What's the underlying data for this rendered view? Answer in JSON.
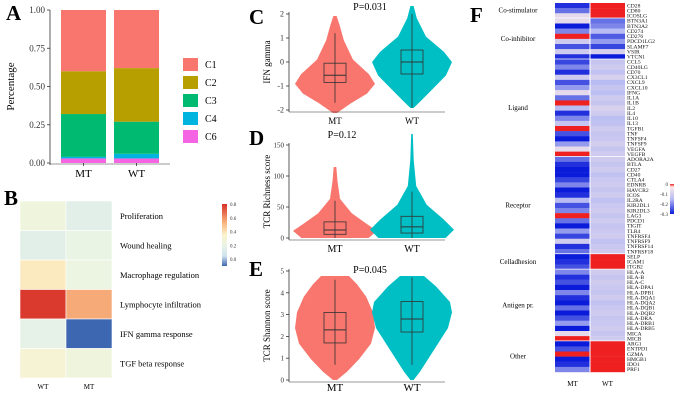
{
  "panels": {
    "A": {
      "label": "A",
      "chart_data": {
        "type": "bar",
        "stacked": true,
        "categories": [
          "MT",
          "WT"
        ],
        "series": [
          {
            "name": "C6",
            "values": [
              0.03,
              0.03
            ]
          },
          {
            "name": "C4",
            "values": [
              0.01,
              0.03
            ]
          },
          {
            "name": "C3",
            "values": [
              0.28,
              0.21
            ]
          },
          {
            "name": "C2",
            "values": [
              0.28,
              0.35
            ]
          },
          {
            "name": "C1",
            "values": [
              0.4,
              0.38
            ]
          }
        ],
        "colors": {
          "C1": "#f8766d",
          "C2": "#b79f00",
          "C3": "#00ba72",
          "C4": "#00b4e0",
          "C6": "#f564e3"
        },
        "legend_order": [
          "C1",
          "C2",
          "C3",
          "C4",
          "C6"
        ],
        "ylabel": "Percentage",
        "ylim": [
          0,
          1
        ],
        "yticks": [
          "0.00",
          "0.25",
          "0.50",
          "0.75",
          "1.00"
        ]
      }
    },
    "B": {
      "label": "B",
      "chart_data": {
        "type": "heatmap",
        "columns": [
          "WT",
          "MT"
        ],
        "rows": [
          "Proliferation",
          "Wound healing",
          "Macrophage regulation",
          "Lymphocyte infiltration",
          "IFN gamma response",
          "TGF beta response"
        ],
        "values": [
          [
            0.25,
            0.15
          ],
          [
            0.15,
            0.2
          ],
          [
            0.38,
            0.22
          ],
          [
            0.78,
            0.55
          ],
          [
            0.18,
            -0.1
          ],
          [
            0.3,
            0.25
          ]
        ],
        "scale": {
          "min": -0.1,
          "max": 0.8,
          "ticks": [
            "0.8",
            "0.6",
            "0.4",
            "0.2",
            "0.0"
          ]
        }
      }
    },
    "C": {
      "label": "C",
      "chart_data": {
        "type": "violin",
        "title": "P=0.031",
        "ylabel": "IFN gamma",
        "categories": [
          "MT",
          "WT"
        ],
        "ylim": [
          -2,
          2
        ],
        "yticks": [
          "2",
          "1",
          "0",
          "-1",
          "-2"
        ],
        "boxes": [
          {
            "q1": -0.85,
            "median": -0.55,
            "q3": -0.05,
            "low": -1.7,
            "high": 1.2
          },
          {
            "q1": -0.5,
            "median": 0.0,
            "q3": 0.5,
            "low": -1.9,
            "high": 2.0
          }
        ],
        "colors": [
          "#f8766d",
          "#00bfc4"
        ]
      }
    },
    "D": {
      "label": "D",
      "chart_data": {
        "type": "violin",
        "title": "P=0.12",
        "ylabel": "TCR Richness score",
        "categories": [
          "MT",
          "WT"
        ],
        "ylim": [
          0,
          150
        ],
        "yticks": [
          "150",
          "100",
          "50",
          "0"
        ],
        "boxes": [
          {
            "q1": 6,
            "median": 13,
            "q3": 26,
            "low": 0,
            "high": 60
          },
          {
            "q1": 8,
            "median": 18,
            "q3": 35,
            "low": 0,
            "high": 75
          }
        ],
        "colors": [
          "#f8766d",
          "#00bfc4"
        ]
      }
    },
    "E": {
      "label": "E",
      "chart_data": {
        "type": "violin",
        "title": "P=0.045",
        "ylabel": "TCR Shannon score",
        "categories": [
          "MT",
          "WT"
        ],
        "ylim": [
          0,
          5
        ],
        "yticks": [
          "5",
          "4",
          "3",
          "2",
          "1",
          "0"
        ],
        "boxes": [
          {
            "q1": 1.7,
            "median": 2.3,
            "q3": 3.1,
            "low": 0.7,
            "high": 4.6
          },
          {
            "q1": 2.2,
            "median": 2.8,
            "q3": 3.6,
            "low": 0.7,
            "high": 4.7
          }
        ],
        "colors": [
          "#f8766d",
          "#00bfc4"
        ]
      }
    },
    "F": {
      "label": "F",
      "chart_data": {
        "type": "heatmap",
        "columns": [
          "MT",
          "WT"
        ],
        "scale": {
          "min": -0.3,
          "max": 0,
          "ticks": [
            "0",
            "-0.1",
            "-0.2",
            "-0.3"
          ]
        },
        "groups": [
          {
            "name": "Co-stimulator",
            "genes": [
              "CD28",
              "CD80",
              "ICOSLG"
            ],
            "mt": [
              -0.28,
              -0.22,
              -0.05
            ],
            "wt": [
              0,
              0,
              0
            ]
          },
          {
            "name": "Co-inhibitor",
            "genes": [
              "BTN3A1",
              "BTN3A2",
              "CD274",
              "CD276",
              "PDCD1LG2",
              "SLAMF7",
              "VSIR",
              "VTCN1"
            ],
            "mt": [
              -0.05,
              -0.3,
              -0.2,
              0,
              -0.1,
              -0.25,
              -0.1,
              -0.28
            ],
            "wt": [
              -0.22,
              -0.2,
              -0.15,
              -0.24,
              -0.18,
              -0.26,
              -0.08,
              -0.3
            ]
          },
          {
            "name": "Ligand",
            "genes": [
              "CCL5",
              "CD40LG",
              "CD70",
              "CX3CL1",
              "CXCL9",
              "CXCL10",
              "IFNG",
              "IL1A",
              "IL1B",
              "IL2",
              "IL4",
              "IL10",
              "IL13",
              "TGFB1",
              "TNF",
              "TNFSF4",
              "TNFSF9",
              "VEGFA",
              "VEGFB"
            ],
            "mt": [
              -0.26,
              -0.2,
              -0.28,
              -0.1,
              -0.25,
              -0.18,
              -0.05,
              -0.22,
              0,
              -0.15,
              -0.28,
              -0.2,
              -0.12,
              0,
              -0.25,
              -0.3,
              -0.18,
              -0.05,
              0
            ],
            "wt": [
              -0.12,
              -0.1,
              -0.13,
              -0.08,
              -0.15,
              -0.12,
              -0.14,
              -0.1,
              -0.12,
              -0.08,
              -0.1,
              -0.14,
              -0.13,
              -0.1,
              -0.12,
              -0.11,
              -0.09,
              -0.12,
              -0.1
            ]
          },
          {
            "name": "Receptor",
            "genes": [
              "ADORA2A",
              "BTLA",
              "CD27",
              "CD40",
              "CTLA4",
              "EDNRB",
              "HAVCR2",
              "ICOS",
              "IL2RA",
              "KIR2DL1",
              "KIR2DL3",
              "LAG3",
              "PDCD1",
              "TIGIT",
              "TLR4",
              "TNFRSF4",
              "TNFRSF9",
              "TNFRSF14",
              "TNFRSF18"
            ],
            "mt": [
              -0.22,
              -0.28,
              -0.3,
              -0.3,
              -0.26,
              -0.2,
              -0.3,
              -0.28,
              -0.15,
              -0.25,
              -0.2,
              0,
              -0.22,
              -0.3,
              -0.18,
              -0.26,
              -0.1,
              -0.28,
              -0.22
            ],
            "wt": [
              -0.1,
              -0.12,
              -0.1,
              -0.13,
              -0.11,
              -0.1,
              -0.12,
              -0.1,
              -0.13,
              -0.11,
              -0.1,
              -0.12,
              -0.1,
              -0.12,
              -0.11,
              -0.1,
              -0.13,
              -0.11,
              -0.1
            ]
          },
          {
            "name": "Celladhesion",
            "genes": [
              "SELP",
              "ICAM1",
              "ITGB2"
            ],
            "mt": [
              -0.3,
              -0.28,
              -0.25
            ],
            "wt": [
              0,
              0,
              0
            ]
          },
          {
            "name": "Antigen pr.",
            "genes": [
              "HLA-A",
              "HLA-B",
              "HLA-C",
              "HLA-DPA1",
              "HLA-DPB1",
              "HLA-DQA1",
              "HLA-DQA2",
              "HLA-DQB1",
              "HLA-DQB2",
              "HLA-DRA",
              "HLA-DRB1",
              "HLA-DRB5",
              "MICA",
              "MICB"
            ],
            "mt": [
              -0.2,
              -0.28,
              -0.25,
              -0.3,
              -0.2,
              -0.28,
              -0.3,
              -0.22,
              -0.3,
              -0.25,
              -0.18,
              -0.3,
              -0.05,
              0
            ],
            "wt": [
              -0.1,
              -0.12,
              -0.1,
              -0.11,
              -0.12,
              -0.1,
              -0.13,
              -0.11,
              -0.1,
              -0.12,
              -0.11,
              -0.1,
              -0.12,
              -0.1
            ]
          },
          {
            "name": "Other",
            "genes": [
              "ARG1",
              "ENTPD1",
              "GZMA",
              "HMGB1",
              "IDO1",
              "PRF1"
            ],
            "mt": [
              -0.3,
              -0.25,
              0,
              -0.3,
              -0.28,
              -0.2
            ],
            "wt": [
              0,
              0,
              0,
              0,
              0,
              0
            ]
          }
        ]
      }
    }
  }
}
